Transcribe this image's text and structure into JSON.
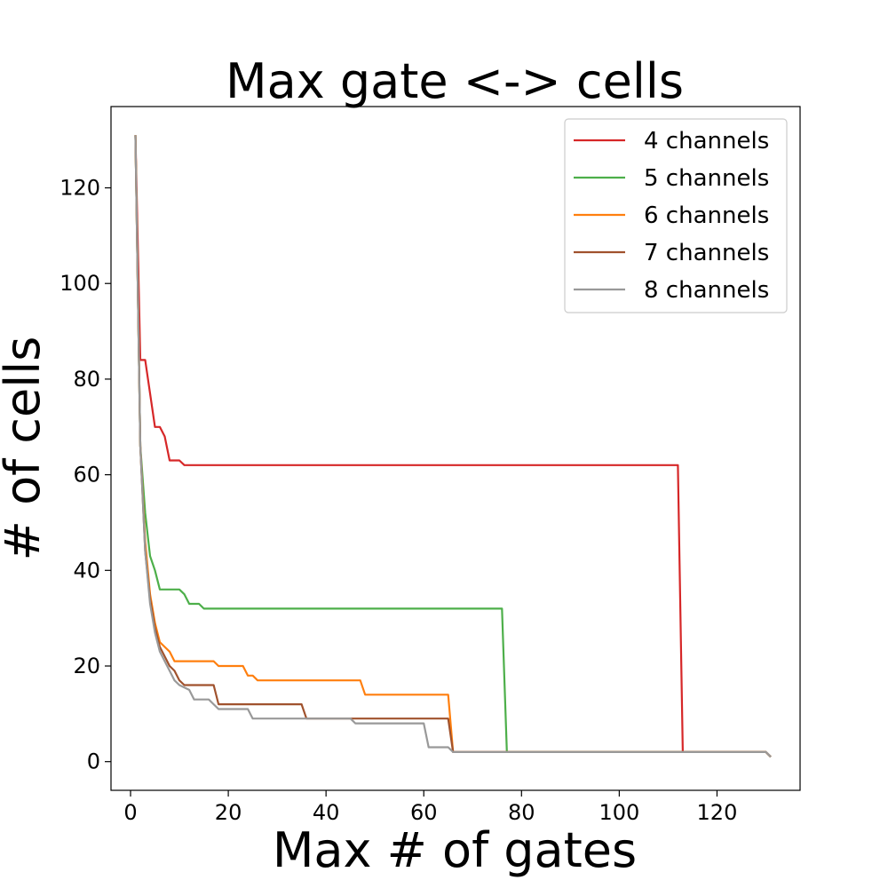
{
  "chart_data": {
    "type": "line",
    "title": "Max gate <-> cells",
    "xlabel": "Max # of gates",
    "ylabel": "# of cells",
    "xlim": [
      -4,
      137
    ],
    "ylim": [
      -6,
      137
    ],
    "xticks": [
      0,
      20,
      40,
      60,
      80,
      100,
      120
    ],
    "yticks": [
      0,
      20,
      40,
      60,
      80,
      100,
      120
    ],
    "grid": false,
    "legend_position": "top-right",
    "series": [
      {
        "name": "4 channels",
        "color": "#d62728",
        "points": [
          [
            1,
            131
          ],
          [
            2,
            84
          ],
          [
            3,
            84
          ],
          [
            5,
            70
          ],
          [
            6,
            70
          ],
          [
            7,
            68
          ],
          [
            8,
            63
          ],
          [
            9,
            63
          ],
          [
            10,
            63
          ],
          [
            11,
            62
          ],
          [
            112,
            62
          ],
          [
            113,
            2
          ],
          [
            130,
            2
          ],
          [
            131,
            1
          ]
        ]
      },
      {
        "name": "5 channels",
        "color": "#4daf4a",
        "points": [
          [
            1,
            131
          ],
          [
            2,
            66
          ],
          [
            3,
            52
          ],
          [
            4,
            43
          ],
          [
            5,
            40
          ],
          [
            6,
            36
          ],
          [
            10,
            36
          ],
          [
            11,
            35
          ],
          [
            12,
            33
          ],
          [
            14,
            33
          ],
          [
            15,
            32
          ],
          [
            76,
            32
          ],
          [
            77,
            2
          ],
          [
            130,
            2
          ],
          [
            131,
            1
          ]
        ]
      },
      {
        "name": "6 channels",
        "color": "#ff7f0e",
        "points": [
          [
            1,
            131
          ],
          [
            2,
            66
          ],
          [
            3,
            46
          ],
          [
            4,
            35
          ],
          [
            5,
            29
          ],
          [
            6,
            25
          ],
          [
            7,
            24
          ],
          [
            8,
            23
          ],
          [
            9,
            21
          ],
          [
            17,
            21
          ],
          [
            18,
            20
          ],
          [
            23,
            20
          ],
          [
            24,
            18
          ],
          [
            25,
            18
          ],
          [
            26,
            17
          ],
          [
            47,
            17
          ],
          [
            48,
            14
          ],
          [
            65,
            14
          ],
          [
            66,
            2
          ],
          [
            130,
            2
          ],
          [
            131,
            1
          ]
        ]
      },
      {
        "name": "7 channels",
        "color": "#a0522d",
        "points": [
          [
            1,
            131
          ],
          [
            2,
            66
          ],
          [
            3,
            44
          ],
          [
            4,
            34
          ],
          [
            5,
            28
          ],
          [
            6,
            24
          ],
          [
            7,
            22
          ],
          [
            8,
            20
          ],
          [
            9,
            19
          ],
          [
            10,
            17
          ],
          [
            11,
            16
          ],
          [
            17,
            16
          ],
          [
            18,
            12
          ],
          [
            35,
            12
          ],
          [
            36,
            9
          ],
          [
            65,
            9
          ],
          [
            66,
            2
          ],
          [
            130,
            2
          ],
          [
            131,
            1
          ]
        ]
      },
      {
        "name": "8 channels",
        "color": "#999999",
        "points": [
          [
            1,
            131
          ],
          [
            2,
            66
          ],
          [
            3,
            44
          ],
          [
            4,
            33
          ],
          [
            5,
            27
          ],
          [
            6,
            23
          ],
          [
            7,
            21
          ],
          [
            8,
            19
          ],
          [
            9,
            17
          ],
          [
            10,
            16
          ],
          [
            12,
            15
          ],
          [
            13,
            13
          ],
          [
            16,
            13
          ],
          [
            17,
            12
          ],
          [
            18,
            11
          ],
          [
            23,
            11
          ],
          [
            24,
            11
          ],
          [
            25,
            9
          ],
          [
            45,
            9
          ],
          [
            46,
            8
          ],
          [
            60,
            8
          ],
          [
            61,
            3
          ],
          [
            64,
            3
          ],
          [
            65,
            3
          ],
          [
            66,
            2
          ],
          [
            130,
            2
          ],
          [
            131,
            1
          ]
        ]
      }
    ]
  }
}
